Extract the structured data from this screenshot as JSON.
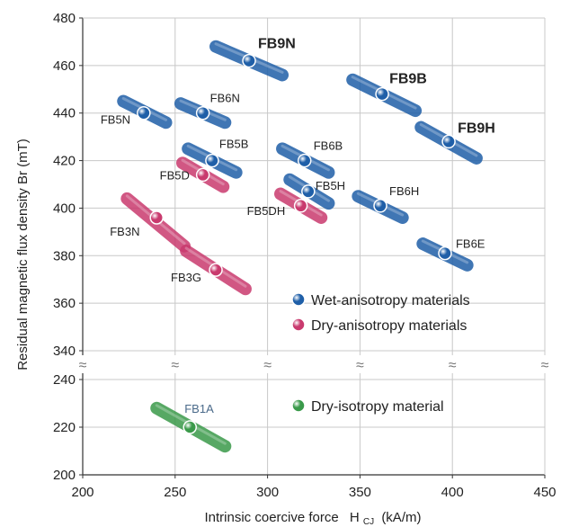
{
  "chart_data": {
    "type": "scatter",
    "title": "",
    "xlabel": "Intrinsic coercive force",
    "xlabel_symbol": "H",
    "xlabel_sub": "CJ",
    "xlabel_unit": "(kA/m)",
    "ylabel": "Residual magnetic flux density Br (mT)",
    "xlim": [
      200,
      450
    ],
    "y_upper_range": [
      340,
      480
    ],
    "y_lower_range": [
      200,
      240
    ],
    "axis_break": true,
    "x_ticks": [
      "200",
      "250",
      "300",
      "350",
      "400",
      "450"
    ],
    "y_upper_ticks": [
      "340",
      "360",
      "380",
      "400",
      "420",
      "440",
      "460",
      "480"
    ],
    "y_lower_ticks": [
      "200",
      "220",
      "240"
    ],
    "break_symbol": "≈",
    "colors": {
      "wet": "#1f5fa8",
      "dry": "#c93a6e",
      "iso": "#3a9a4a"
    },
    "legend": [
      {
        "label": "Wet-anisotropy materials",
        "group": "wet"
      },
      {
        "label": "Dry-anisotropy materials",
        "group": "dry"
      },
      {
        "label": "Dry-isotropy material",
        "group": "iso"
      }
    ],
    "series": [
      {
        "name": "FB9N",
        "group": "wet",
        "x": 290,
        "y": 462,
        "range": [
          [
            272,
            468
          ],
          [
            308,
            456
          ]
        ],
        "bold": true
      },
      {
        "name": "FB5N",
        "group": "wet",
        "x": 233,
        "y": 440,
        "range": [
          [
            222,
            445
          ],
          [
            245,
            436
          ]
        ],
        "bold": false
      },
      {
        "name": "FB6N",
        "group": "wet",
        "x": 265,
        "y": 440,
        "range": [
          [
            253,
            444
          ],
          [
            277,
            436
          ]
        ],
        "bold": false
      },
      {
        "name": "FB9B",
        "group": "wet",
        "x": 362,
        "y": 448,
        "range": [
          [
            346,
            454
          ],
          [
            380,
            441
          ]
        ],
        "bold": true
      },
      {
        "name": "FB9H",
        "group": "wet",
        "x": 398,
        "y": 428,
        "range": [
          [
            383,
            434
          ],
          [
            413,
            421
          ]
        ],
        "bold": true
      },
      {
        "name": "FB5B",
        "group": "wet",
        "x": 270,
        "y": 420,
        "range": [
          [
            257,
            425
          ],
          [
            283,
            415
          ]
        ],
        "bold": false
      },
      {
        "name": "FB6B",
        "group": "wet",
        "x": 320,
        "y": 420,
        "range": [
          [
            308,
            425
          ],
          [
            333,
            415
          ]
        ],
        "bold": false
      },
      {
        "name": "FB5D",
        "group": "dry",
        "x": 265,
        "y": 414,
        "range": [
          [
            254,
            419
          ],
          [
            276,
            409
          ]
        ],
        "bold": false
      },
      {
        "name": "FB5H",
        "group": "wet",
        "x": 322,
        "y": 407,
        "range": [
          [
            312,
            412
          ],
          [
            333,
            402
          ]
        ],
        "bold": false
      },
      {
        "name": "FB6H",
        "group": "wet",
        "x": 361,
        "y": 401,
        "range": [
          [
            349,
            405
          ],
          [
            373,
            396
          ]
        ],
        "bold": false
      },
      {
        "name": "FB5DH",
        "group": "dry",
        "x": 318,
        "y": 401,
        "range": [
          [
            307,
            406
          ],
          [
            329,
            396
          ]
        ],
        "bold": false
      },
      {
        "name": "FB3N",
        "group": "dry",
        "x": 240,
        "y": 396,
        "range": [
          [
            224,
            404
          ],
          [
            255,
            384
          ]
        ],
        "bold": false
      },
      {
        "name": "FB6E",
        "group": "wet",
        "x": 396,
        "y": 381,
        "range": [
          [
            384,
            385
          ],
          [
            408,
            376
          ]
        ],
        "bold": false
      },
      {
        "name": "FB3G",
        "group": "dry",
        "x": 272,
        "y": 374,
        "range": [
          [
            256,
            382
          ],
          [
            288,
            366
          ]
        ],
        "bold": false
      },
      {
        "name": "FB1A",
        "group": "iso",
        "x": 258,
        "y": 220,
        "range": [
          [
            240,
            228
          ],
          [
            277,
            212
          ]
        ],
        "bold": false
      }
    ]
  }
}
